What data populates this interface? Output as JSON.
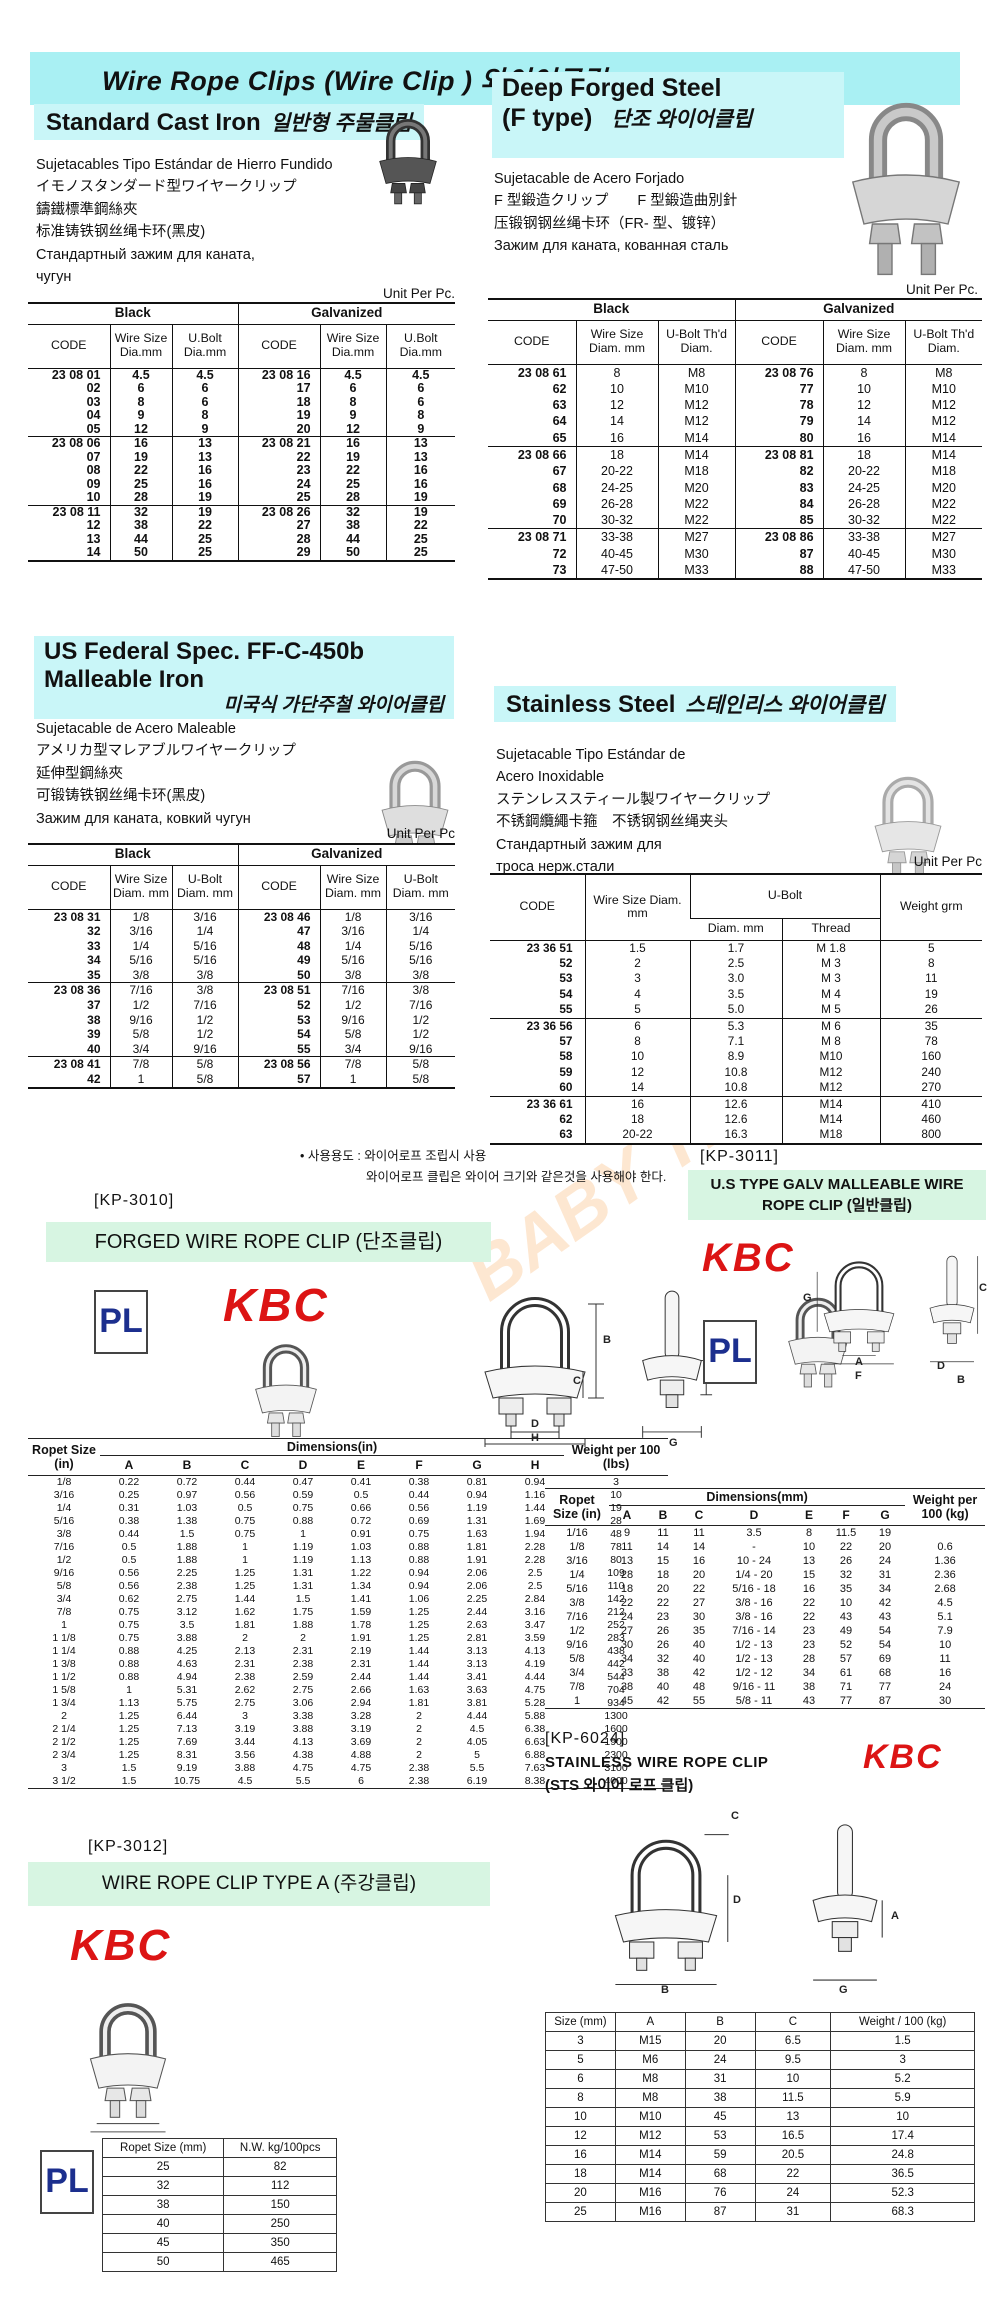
{
  "banner": "Wire Rope Clips  (Wire Clip ) 와이어클립",
  "watermark": "BABY THAI",
  "logos": {
    "pl": "PL",
    "kbc": "KBC"
  },
  "note": [
    "• 사용용도 : 와이어로프 조립시 사용",
    "와이어로프 클립은 와이어 크기와 같은것을 사용해야 한다."
  ],
  "std": {
    "title_en": "Standard Cast Iron",
    "title_ko": "일반형 주물클립",
    "desc": [
      "Sujetacables Tipo Estándar de Hierro Fundido",
      "イモノスタンダード型ワイヤークリップ",
      "鑄鐵標準鋼絲夾",
      "标准铸铁钢丝绳卡环(黑皮)",
      "Стандартный зажим для каната,",
      "чугун"
    ],
    "unit": "Unit Per Pc.",
    "grp": [
      "Black",
      "Galvanized"
    ],
    "cols": [
      "CODE",
      "Wire Size Dia.mm",
      "U.Bolt Dia.mm",
      "CODE",
      "Wire Size Dia.mm",
      "U.Bolt Dia.mm"
    ],
    "seps": [
      5,
      10
    ],
    "rows": [
      [
        "23 08 01",
        "4.5",
        "4.5",
        "23 08 16",
        "4.5",
        "4.5"
      ],
      [
        "02",
        "6",
        "6",
        "17",
        "6",
        "6"
      ],
      [
        "03",
        "8",
        "6",
        "18",
        "8",
        "6"
      ],
      [
        "04",
        "9",
        "8",
        "19",
        "9",
        "8"
      ],
      [
        "05",
        "12",
        "9",
        "20",
        "12",
        "9"
      ],
      [
        "23 08 06",
        "16",
        "13",
        "23 08 21",
        "16",
        "13"
      ],
      [
        "07",
        "19",
        "13",
        "22",
        "19",
        "13"
      ],
      [
        "08",
        "22",
        "16",
        "23",
        "22",
        "16"
      ],
      [
        "09",
        "25",
        "16",
        "24",
        "25",
        "16"
      ],
      [
        "10",
        "28",
        "19",
        "25",
        "28",
        "19"
      ],
      [
        "23 08 11",
        "32",
        "19",
        "23 08 26",
        "32",
        "19"
      ],
      [
        "12",
        "38",
        "22",
        "27",
        "38",
        "22"
      ],
      [
        "13",
        "44",
        "25",
        "28",
        "44",
        "25"
      ],
      [
        "14",
        "50",
        "25",
        "29",
        "50",
        "25"
      ]
    ]
  },
  "deep": {
    "title_en1": "Deep Forged Steel",
    "title_en2": "(F type)",
    "title_ko": "단조 와이어클립",
    "desc": [
      "Sujetacable de Acero Forjado",
      "F 型鍛造クリップ　　F 型鍛造曲別針",
      "压锻钢钢丝绳卡环（FR- 型、镀锌）",
      "Зажим для каната, кованная сталь"
    ],
    "unit": "Unit Per Pc.",
    "grp": [
      "Black",
      "Galvanized"
    ],
    "cols": [
      "CODE",
      "Wire Size Diam. mm",
      "U-Bolt Th'd Diam.",
      "CODE",
      "Wire Size Diam. mm",
      "U-Bolt Th'd Diam."
    ],
    "seps": [
      5,
      10
    ],
    "rows": [
      [
        "23 08 61",
        "8",
        "M8",
        "23 08 76",
        "8",
        "M8"
      ],
      [
        "62",
        "10",
        "M10",
        "77",
        "10",
        "M10"
      ],
      [
        "63",
        "12",
        "M12",
        "78",
        "12",
        "M12"
      ],
      [
        "64",
        "14",
        "M12",
        "79",
        "14",
        "M12"
      ],
      [
        "65",
        "16",
        "M14",
        "80",
        "16",
        "M14"
      ],
      [
        "23 08 66",
        "18",
        "M14",
        "23 08 81",
        "18",
        "M14"
      ],
      [
        "67",
        "20-22",
        "M18",
        "82",
        "20-22",
        "M18"
      ],
      [
        "68",
        "24-25",
        "M20",
        "83",
        "24-25",
        "M20"
      ],
      [
        "69",
        "26-28",
        "M22",
        "84",
        "26-28",
        "M22"
      ],
      [
        "70",
        "30-32",
        "M22",
        "85",
        "30-32",
        "M22"
      ],
      [
        "23 08 71",
        "33-38",
        "M27",
        "23 08 86",
        "33-38",
        "M27"
      ],
      [
        "72",
        "40-45",
        "M30",
        "87",
        "40-45",
        "M30"
      ],
      [
        "73",
        "47-50",
        "M33",
        "88",
        "47-50",
        "M33"
      ]
    ]
  },
  "usfed": {
    "title_en1": "US Federal Spec. FF-C-450b",
    "title_en2": "Malleable Iron",
    "title_ko": "미국식 가단주철 와이어클립",
    "desc": [
      "Sujetacable de Acero Maleable",
      "アメリカ型マレアブルワイヤークリップ",
      "延伸型鋼絲夾",
      "可锻铸铁钢丝绳卡环(黑皮)",
      "Зажим для каната, ковкий чугун"
    ],
    "unit": "Unit Per Pc",
    "grp": [
      "Black",
      "Galvanized"
    ],
    "cols": [
      "CODE",
      "Wire Size Diam. mm",
      "U-Bolt Diam. mm",
      "CODE",
      "Wire Size Diam. mm",
      "U-Bolt Diam. mm"
    ],
    "seps": [
      5,
      10
    ],
    "rows": [
      [
        "23 08 31",
        "1/8",
        "3/16",
        "23 08 46",
        "1/8",
        "3/16"
      ],
      [
        "32",
        "3/16",
        "1/4",
        "47",
        "3/16",
        "1/4"
      ],
      [
        "33",
        "1/4",
        "5/16",
        "48",
        "1/4",
        "5/16"
      ],
      [
        "34",
        "5/16",
        "5/16",
        "49",
        "5/16",
        "5/16"
      ],
      [
        "35",
        "3/8",
        "3/8",
        "50",
        "3/8",
        "3/8"
      ],
      [
        "23 08 36",
        "7/16",
        "3/8",
        "23 08 51",
        "7/16",
        "3/8"
      ],
      [
        "37",
        "1/2",
        "7/16",
        "52",
        "1/2",
        "7/16"
      ],
      [
        "38",
        "9/16",
        "1/2",
        "53",
        "9/16",
        "1/2"
      ],
      [
        "39",
        "5/8",
        "1/2",
        "54",
        "5/8",
        "1/2"
      ],
      [
        "40",
        "3/4",
        "9/16",
        "55",
        "3/4",
        "9/16"
      ],
      [
        "23 08 41",
        "7/8",
        "5/8",
        "23 08 56",
        "7/8",
        "5/8"
      ],
      [
        "42",
        "1",
        "5/8",
        "57",
        "1",
        "5/8"
      ]
    ]
  },
  "stainless": {
    "title_en": "Stainless Steel",
    "title_ko": "스테인리스 와이어클립",
    "desc": [
      "Sujetacable Tipo Estándar de",
      "Acero Inoxidable",
      "ステンレススティール製ワイヤークリップ",
      "不锈鋼纜繩卡箍　不锈钢钢丝绳夹头",
      "Стандартный зажим для",
      "троса нерж.стали"
    ],
    "unit": "Unit Per Pc",
    "cols": {
      "code": "CODE",
      "wire": "Wire Size Diam. mm",
      "ubolt": "U-Bolt",
      "ubolt_sub": [
        "Diam. mm",
        "Thread"
      ],
      "weight": "Weight grm"
    },
    "seps": [
      5,
      10
    ],
    "rows": [
      [
        "23 36 51",
        "1.5",
        "1.7",
        "M 1.8",
        "5"
      ],
      [
        "52",
        "2",
        "2.5",
        "M 3",
        "8"
      ],
      [
        "53",
        "3",
        "3.0",
        "M 3",
        "11"
      ],
      [
        "54",
        "4",
        "3.5",
        "M 4",
        "19"
      ],
      [
        "55",
        "5",
        "5.0",
        "M 5",
        "26"
      ],
      [
        "23 36 56",
        "6",
        "5.3",
        "M 6",
        "35"
      ],
      [
        "57",
        "8",
        "7.1",
        "M 8",
        "78"
      ],
      [
        "58",
        "10",
        "8.9",
        "M10",
        "160"
      ],
      [
        "59",
        "12",
        "10.8",
        "M12",
        "240"
      ],
      [
        "60",
        "14",
        "10.8",
        "M12",
        "270"
      ],
      [
        "23 36 61",
        "16",
        "12.6",
        "M14",
        "410"
      ],
      [
        "62",
        "18",
        "12.6",
        "M14",
        "460"
      ],
      [
        "63",
        "20-22",
        "16.3",
        "M18",
        "800"
      ]
    ]
  },
  "kp3010": {
    "code": "[KP-3010]",
    "banner": "FORGED WIRE ROPE CLIP (단조클립)",
    "head": {
      "rope": "Ropet Size (in)",
      "dims": "Dimensions(in)",
      "letters": [
        "A",
        "B",
        "C",
        "D",
        "E",
        "F",
        "G",
        "H"
      ],
      "weight": "Weight per 100 (lbs)"
    },
    "front_labels": [
      "B",
      "C",
      "D",
      "H"
    ],
    "side_labels": [
      "A",
      "G"
    ],
    "rows": [
      [
        "1/8",
        "0.22",
        "0.72",
        "0.44",
        "0.47",
        "0.41",
        "0.38",
        "0.81",
        "0.94",
        "3"
      ],
      [
        "3/16",
        "0.25",
        "0.97",
        "0.56",
        "0.59",
        "0.5",
        "0.44",
        "0.94",
        "1.16",
        "10"
      ],
      [
        "1/4",
        "0.31",
        "1.03",
        "0.5",
        "0.75",
        "0.66",
        "0.56",
        "1.19",
        "1.44",
        "19"
      ],
      [
        "5/16",
        "0.38",
        "1.38",
        "0.75",
        "0.88",
        "0.72",
        "0.69",
        "1.31",
        "1.69",
        "28"
      ],
      [
        "3/8",
        "0.44",
        "1.5",
        "0.75",
        "1",
        "0.91",
        "0.75",
        "1.63",
        "1.94",
        "48"
      ],
      [
        "7/16",
        "0.5",
        "1.88",
        "1",
        "1.19",
        "1.03",
        "0.88",
        "1.81",
        "2.28",
        "78"
      ],
      [
        "1/2",
        "0.5",
        "1.88",
        "1",
        "1.19",
        "1.13",
        "0.88",
        "1.91",
        "2.28",
        "80"
      ],
      [
        "9/16",
        "0.56",
        "2.25",
        "1.25",
        "1.31",
        "1.22",
        "0.94",
        "2.06",
        "2.5",
        "109"
      ],
      [
        "5/8",
        "0.56",
        "2.38",
        "1.25",
        "1.31",
        "1.34",
        "0.94",
        "2.06",
        "2.5",
        "110"
      ],
      [
        "3/4",
        "0.62",
        "2.75",
        "1.44",
        "1.5",
        "1.41",
        "1.06",
        "2.25",
        "2.84",
        "142"
      ],
      [
        "7/8",
        "0.75",
        "3.12",
        "1.62",
        "1.75",
        "1.59",
        "1.25",
        "2.44",
        "3.16",
        "212"
      ],
      [
        "1",
        "0.75",
        "3.5",
        "1.81",
        "1.88",
        "1.78",
        "1.25",
        "2.63",
        "3.47",
        "252"
      ],
      [
        "1 1/8",
        "0.75",
        "3.88",
        "2",
        "2",
        "1.91",
        "1.25",
        "2.81",
        "3.59",
        "283"
      ],
      [
        "1 1/4",
        "0.88",
        "4.25",
        "2.13",
        "2.31",
        "2.19",
        "1.44",
        "3.13",
        "4.13",
        "438"
      ],
      [
        "1 3/8",
        "0.88",
        "4.63",
        "2.31",
        "2.38",
        "2.31",
        "1.44",
        "3.13",
        "4.19",
        "442"
      ],
      [
        "1 1/2",
        "0.88",
        "4.94",
        "2.38",
        "2.59",
        "2.44",
        "1.44",
        "3.41",
        "4.44",
        "544"
      ],
      [
        "1 5/8",
        "1",
        "5.31",
        "2.62",
        "2.75",
        "2.66",
        "1.63",
        "3.63",
        "4.75",
        "704"
      ],
      [
        "1 3/4",
        "1.13",
        "5.75",
        "2.75",
        "3.06",
        "2.94",
        "1.81",
        "3.81",
        "5.28",
        "934"
      ],
      [
        "2",
        "1.25",
        "6.44",
        "3",
        "3.38",
        "3.28",
        "2",
        "4.44",
        "5.88",
        "1300"
      ],
      [
        "2 1/4",
        "1.25",
        "7.13",
        "3.19",
        "3.88",
        "3.19",
        "2",
        "4.5",
        "6.38",
        "1600"
      ],
      [
        "2 1/2",
        "1.25",
        "7.69",
        "3.44",
        "4.13",
        "3.69",
        "2",
        "4.05",
        "6.63",
        "1900"
      ],
      [
        "2 3/4",
        "1.25",
        "8.31",
        "3.56",
        "4.38",
        "4.88",
        "2",
        "5",
        "6.88",
        "2300"
      ],
      [
        "3",
        "1.5",
        "9.19",
        "3.88",
        "4.75",
        "4.75",
        "2.38",
        "5.5",
        "7.63",
        "3100"
      ],
      [
        "3 1/2",
        "1.5",
        "10.75",
        "4.5",
        "5.5",
        "6",
        "2.38",
        "6.19",
        "8.38",
        "4000"
      ]
    ]
  },
  "kp3011": {
    "code": "[KP-3011]",
    "banner": "U.S TYPE GALV MALLEABLE WIRE ROPE CLIP (일반클립)",
    "head": {
      "rope": "Ropet Size (in)",
      "dims": "Dimensions(mm)",
      "letters": [
        "A",
        "B",
        "C",
        "D",
        "E",
        "F",
        "G"
      ],
      "weight": "Weight per 100 (kg)"
    },
    "front_labels": [
      "G",
      "A",
      "F"
    ],
    "side_labels": [
      "C",
      "D",
      "B"
    ],
    "rows": [
      [
        "1/16",
        "9",
        "11",
        "11",
        "3.5",
        "8",
        "11.5",
        "19",
        ""
      ],
      [
        "1/8",
        "11",
        "14",
        "14",
        "-",
        "10",
        "22",
        "20",
        "0.6"
      ],
      [
        "3/16",
        "13",
        "15",
        "16",
        "10 - 24",
        "13",
        "26",
        "24",
        "1.36"
      ],
      [
        "1/4",
        "28",
        "18",
        "20",
        "1/4 - 20",
        "15",
        "32",
        "31",
        "2.36"
      ],
      [
        "5/16",
        "18",
        "20",
        "22",
        "5/16 - 18",
        "16",
        "35",
        "34",
        "2.68"
      ],
      [
        "3/8",
        "22",
        "22",
        "27",
        "3/8 - 16",
        "22",
        "10",
        "42",
        "4.5"
      ],
      [
        "7/16",
        "24",
        "23",
        "30",
        "3/8 - 16",
        "22",
        "43",
        "43",
        "5.1"
      ],
      [
        "1/2",
        "27",
        "26",
        "35",
        "7/16 - 14",
        "23",
        "49",
        "54",
        "7.9"
      ],
      [
        "9/16",
        "30",
        "26",
        "40",
        "1/2 - 13",
        "23",
        "52",
        "54",
        "10"
      ],
      [
        "5/8",
        "34",
        "32",
        "40",
        "1/2 - 13",
        "28",
        "57",
        "69",
        "11"
      ],
      [
        "3/4",
        "33",
        "38",
        "42",
        "1/2 - 12",
        "34",
        "61",
        "68",
        "16"
      ],
      [
        "7/8",
        "38",
        "40",
        "48",
        "9/16 - 11",
        "38",
        "71",
        "77",
        "24"
      ],
      [
        "1",
        "45",
        "42",
        "55",
        "5/8 - 11",
        "43",
        "77",
        "87",
        "30"
      ]
    ]
  },
  "kp6024": {
    "code": "[KP-6024]",
    "title1": "STAINLESS WIRE ROPE CLIP",
    "title2": "(STS 와이어 로프 클립)",
    "head": [
      "Size (mm)",
      "A",
      "B",
      "C",
      "Weight / 100 (kg)"
    ],
    "front_labels": [
      "C",
      "D",
      "B"
    ],
    "side_labels": [
      "A",
      "G"
    ],
    "rows": [
      [
        "3",
        "M15",
        "20",
        "6.5",
        "1.5"
      ],
      [
        "5",
        "M6",
        "24",
        "9.5",
        "3"
      ],
      [
        "6",
        "M8",
        "31",
        "10",
        "5.2"
      ],
      [
        "8",
        "M8",
        "38",
        "11.5",
        "5.9"
      ],
      [
        "10",
        "M10",
        "45",
        "13",
        "10"
      ],
      [
        "12",
        "M12",
        "53",
        "16.5",
        "17.4"
      ],
      [
        "16",
        "M14",
        "59",
        "20.5",
        "24.8"
      ],
      [
        "18",
        "M14",
        "68",
        "22",
        "36.5"
      ],
      [
        "20",
        "M16",
        "76",
        "24",
        "52.3"
      ],
      [
        "25",
        "M16",
        "87",
        "31",
        "68.3"
      ]
    ]
  },
  "kp3012": {
    "code": "[KP-3012]",
    "banner": "WIRE ROPE CLIP TYPE A (주강클립)",
    "head": [
      "Ropet Size (mm)",
      "N.W. kg/100pcs"
    ],
    "rows": [
      [
        "25",
        "82"
      ],
      [
        "32",
        "112"
      ],
      [
        "38",
        "150"
      ],
      [
        "40",
        "250"
      ],
      [
        "45",
        "350"
      ],
      [
        "50",
        "465"
      ]
    ]
  }
}
